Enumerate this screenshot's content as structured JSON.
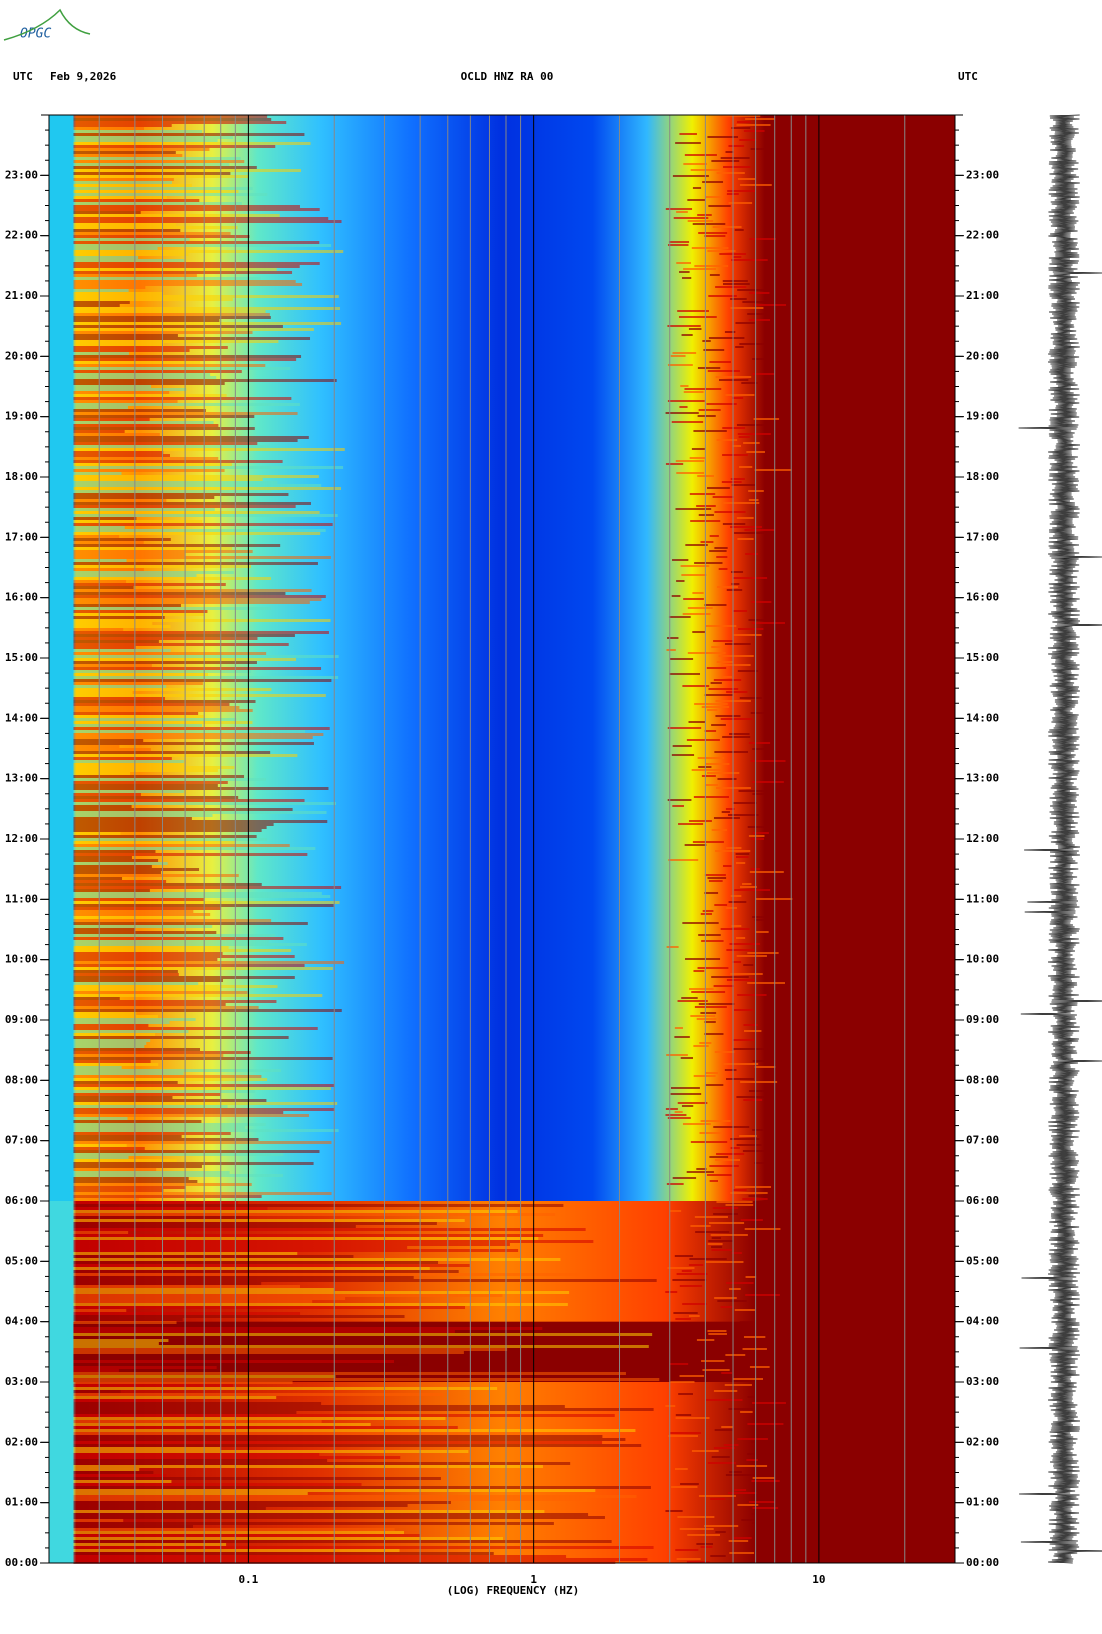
{
  "logo": "OPGC",
  "chart_data": {
    "type": "spectrogram",
    "title": "OCLD HNZ RA 00",
    "date": "Feb 9,2026",
    "left_label": "UTC",
    "right_label": "UTC",
    "x_label": "(LOG) FREQUENCY (HZ)",
    "xlog": true,
    "xlim": [
      0.02,
      30
    ],
    "xticks": [
      0.1,
      1,
      10
    ],
    "ylim": [
      0,
      24
    ],
    "yticks": [
      {
        "value": 0,
        "label": "00:00"
      },
      {
        "value": 1,
        "label": "01:00"
      },
      {
        "value": 2,
        "label": "02:00"
      },
      {
        "value": 3,
        "label": "03:00"
      },
      {
        "value": 4,
        "label": "04:00"
      },
      {
        "value": 5,
        "label": "05:00"
      },
      {
        "value": 6,
        "label": "06:00"
      },
      {
        "value": 7,
        "label": "07:00"
      },
      {
        "value": 8,
        "label": "08:00"
      },
      {
        "value": 9,
        "label": "09:00"
      },
      {
        "value": 10,
        "label": "10:00"
      },
      {
        "value": 11,
        "label": "11:00"
      },
      {
        "value": 12,
        "label": "12:00"
      },
      {
        "value": 13,
        "label": "13:00"
      },
      {
        "value": 14,
        "label": "14:00"
      },
      {
        "value": 15,
        "label": "15:00"
      },
      {
        "value": 16,
        "label": "16:00"
      },
      {
        "value": 17,
        "label": "17:00"
      },
      {
        "value": 18,
        "label": "18:00"
      },
      {
        "value": 19,
        "label": "19:00"
      },
      {
        "value": 20,
        "label": "20:00"
      },
      {
        "value": 21,
        "label": "21:00"
      },
      {
        "value": 22,
        "label": "22:00"
      },
      {
        "value": 23,
        "label": "23:00"
      }
    ]
  }
}
